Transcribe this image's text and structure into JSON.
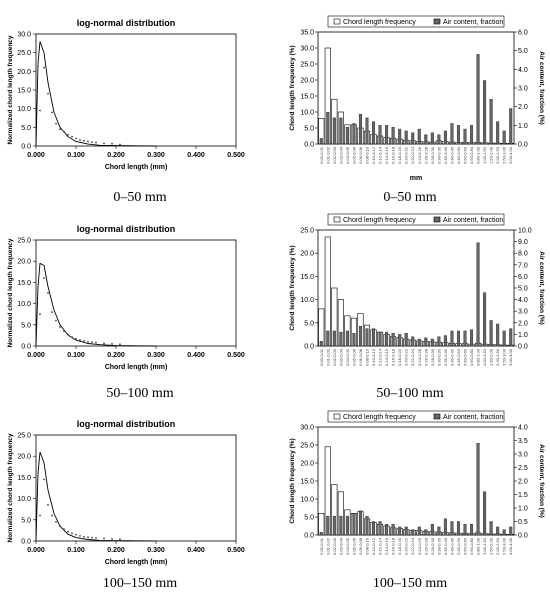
{
  "rows": [
    {
      "left": {
        "title": "log-normal distribution",
        "xlabel": "Chord length (mm)",
        "ylabel": "Normalized chord length frequency",
        "caption": "0–50 mm"
      },
      "right": {
        "xlabel": "mm",
        "ylabel_left": "Chord length frequency (%)",
        "ylabel_right": "Air content, fraction (%)",
        "legend": [
          "Chord length frequency",
          "Air content, fraction"
        ],
        "caption": "0–50 mm"
      }
    },
    {
      "left": {
        "title": "log-normal distribution",
        "xlabel": "Chord length (mm)",
        "ylabel": "Normalized chord length frequency",
        "caption": "50–100 mm"
      },
      "right": {
        "xlabel": "",
        "ylabel_left": "Chord length frequency (%)",
        "ylabel_right": "Air content, fraction (%)",
        "legend": [
          "Chord length frequency",
          "Air content, fraction"
        ],
        "caption": "50–100 mm"
      }
    },
    {
      "left": {
        "title": "log-normal distribution",
        "xlabel": "Chord length (mm)",
        "ylabel": "Normalized chord length frequency",
        "caption": "100–150 mm"
      },
      "right": {
        "xlabel": "",
        "ylabel_left": "Chord length frequency (%)",
        "ylabel_right": "Air content, fraction (%)",
        "legend": [
          "Chord length frequency",
          "Air content, fraction"
        ],
        "caption": "100–150 mm"
      }
    }
  ],
  "chart_data": [
    {
      "type": "line",
      "title": "log-normal distribution",
      "xlabel": "Chord length (mm)",
      "ylabel": "Normalized chord length frequency",
      "xlim": [
        0,
        0.5
      ],
      "ylim": [
        0,
        30
      ],
      "xticks": [
        "0.000",
        "0.100",
        "0.200",
        "0.300",
        "0.400",
        "0.500"
      ],
      "yticks": [
        "0.0",
        "5.0",
        "10.0",
        "15.0",
        "20.0",
        "25.0",
        "30.0"
      ],
      "series": [
        {
          "style": "fitted-curve",
          "x": [
            0,
            0.005,
            0.01,
            0.02,
            0.03,
            0.045,
            0.06,
            0.08,
            0.1,
            0.13,
            0.16,
            0.2,
            0.25,
            0.3
          ],
          "y": [
            0,
            22,
            28,
            25,
            17,
            9,
            5,
            2.5,
            1.2,
            0.5,
            0.2,
            0.1,
            0.05,
            0.02
          ]
        },
        {
          "style": "points",
          "x": [
            0.01,
            0.02,
            0.03,
            0.04,
            0.05,
            0.06,
            0.07,
            0.08,
            0.09,
            0.1,
            0.11,
            0.12,
            0.13,
            0.14,
            0.15,
            0.17,
            0.19,
            0.21
          ],
          "y": [
            9.5,
            21,
            14,
            9,
            6,
            4.5,
            3.8,
            3,
            2.5,
            2,
            1.6,
            1.4,
            1.2,
            1,
            0.9,
            0.7,
            0.6,
            0.4
          ]
        }
      ]
    },
    {
      "type": "bar",
      "xlabel": "mm",
      "ylabel": "Chord length frequency (%)",
      "y2label": "Air content, fraction (%)",
      "ylim": [
        0,
        35
      ],
      "y2lim": [
        0,
        6
      ],
      "yticks": [
        "0.0",
        "5.0",
        "10.0",
        "15.0",
        "20.0",
        "25.0",
        "30.0",
        "35.0"
      ],
      "y2ticks": [
        "0.0",
        "1.0",
        "2.0",
        "3.0",
        "4.0",
        "5.0",
        "6.0"
      ],
      "categories": [
        "0.00-0.01",
        "0.01-0.02",
        "0.02-0.03",
        "0.03-0.04",
        "0.04-0.05",
        "0.05-0.06",
        "0.06-0.08",
        "0.08-0.10",
        "0.10-0.12",
        "0.12-0.14",
        "0.14-0.16",
        "0.16-0.18",
        "0.18-0.20",
        "0.20-0.22",
        "0.22-0.24",
        "0.24-0.26",
        "0.26-0.28",
        "0.28-0.30",
        "0.30-0.35",
        "0.35-0.40",
        "0.40-0.45",
        "0.45-0.50",
        "0.50-0.60",
        "0.60-0.80",
        "0.80-1.00",
        "1.00-1.50",
        "1.50-2.00",
        "2.00-2.50",
        "2.50-3.00",
        "3.00-4.00"
      ],
      "series": [
        {
          "name": "Chord length frequency",
          "axis": "left",
          "values": [
            8,
            30,
            14,
            10,
            6,
            6,
            5,
            4,
            3,
            2.5,
            2,
            1.8,
            1.5,
            1.2,
            1,
            0.8,
            0.7,
            0.6,
            1,
            0.8,
            0.6,
            0.5,
            0.5,
            0.4,
            0.5,
            0.4,
            0.3,
            0.3,
            0.2,
            0.2
          ]
        },
        {
          "name": "Air content, fraction",
          "axis": "right",
          "values": [
            0.3,
            1.7,
            1.4,
            1.4,
            0.9,
            1.1,
            1.6,
            1.4,
            1.2,
            1.0,
            1.0,
            0.9,
            0.8,
            0.7,
            0.6,
            0.8,
            0.5,
            0.6,
            0.5,
            0.7,
            1.1,
            1.0,
            0.8,
            1.0,
            4.8,
            3.4,
            2.4,
            1.2,
            0.7,
            1.9
          ]
        }
      ]
    },
    {
      "type": "line",
      "title": "log-normal distribution",
      "xlabel": "Chord length (mm)",
      "ylabel": "Normalized chord length frequency",
      "xlim": [
        0,
        0.5
      ],
      "ylim": [
        0,
        25
      ],
      "xticks": [
        "0.000",
        "0.100",
        "0.200",
        "0.300",
        "0.400",
        "0.500"
      ],
      "yticks": [
        "0.0",
        "5.0",
        "10.0",
        "15.0",
        "20.0",
        "25.0"
      ],
      "series": [
        {
          "style": "fitted-curve",
          "x": [
            0,
            0.005,
            0.01,
            0.02,
            0.03,
            0.045,
            0.06,
            0.08,
            0.1,
            0.13,
            0.16,
            0.2,
            0.25,
            0.3
          ],
          "y": [
            0,
            14,
            19.5,
            19,
            14,
            8.5,
            5,
            2.6,
            1.4,
            0.6,
            0.3,
            0.1,
            0.05,
            0.02
          ]
        },
        {
          "style": "points",
          "x": [
            0.01,
            0.02,
            0.03,
            0.04,
            0.05,
            0.06,
            0.07,
            0.08,
            0.09,
            0.1,
            0.11,
            0.12,
            0.13,
            0.14,
            0.15,
            0.17,
            0.19,
            0.21
          ],
          "y": [
            7.5,
            16,
            12.5,
            8,
            6,
            4.5,
            3.5,
            2.7,
            2.1,
            1.7,
            1.4,
            1.2,
            1,
            0.9,
            0.8,
            0.6,
            0.5,
            0.4
          ]
        }
      ]
    },
    {
      "type": "bar",
      "xlabel": "",
      "ylabel": "Chord length frequency (%)",
      "y2label": "Air content, fraction (%)",
      "ylim": [
        0,
        25
      ],
      "y2lim": [
        0,
        10
      ],
      "yticks": [
        "0.0",
        "5.0",
        "10.0",
        "15.0",
        "20.0",
        "25.0"
      ],
      "y2ticks": [
        "0.0",
        "1.0",
        "2.0",
        "3.0",
        "4.0",
        "5.0",
        "6.0",
        "7.0",
        "8.0",
        "9.0",
        "10.0"
      ],
      "categories": [
        "0.00-0.01",
        "0.01-0.02",
        "0.02-0.03",
        "0.03-0.04",
        "0.04-0.05",
        "0.05-0.06",
        "0.06-0.08",
        "0.08-0.10",
        "0.10-0.12",
        "0.12-0.14",
        "0.14-0.16",
        "0.16-0.18",
        "0.18-0.20",
        "0.20-0.22",
        "0.22-0.24",
        "0.24-0.26",
        "0.26-0.28",
        "0.28-0.30",
        "0.30-0.35",
        "0.35-0.40",
        "0.40-0.45",
        "0.45-0.50",
        "0.50-0.60",
        "0.60-0.80",
        "0.80-1.00",
        "1.00-1.50",
        "1.50-2.00",
        "2.00-2.50",
        "2.50-3.00",
        "3.00-4.00"
      ],
      "series": [
        {
          "name": "Chord length frequency",
          "axis": "left",
          "values": [
            8,
            23.5,
            12.5,
            10,
            6.5,
            6,
            7,
            4.5,
            3.5,
            3,
            2.5,
            2,
            1.8,
            1.5,
            1.3,
            1.1,
            1,
            0.9,
            0.8,
            0.7,
            0.6,
            0.5,
            0.5,
            0.4,
            0.6,
            0.4,
            0.3,
            0.3,
            0.2,
            0.2
          ]
        },
        {
          "name": "Air content, fraction",
          "axis": "right",
          "values": [
            0.4,
            1.3,
            1.3,
            1.2,
            1.3,
            1.1,
            1.7,
            1.5,
            1.5,
            1.2,
            1.2,
            1.1,
            1.0,
            1.1,
            0.8,
            0.6,
            0.7,
            0.6,
            0.8,
            0.9,
            1.3,
            1.3,
            1.3,
            1.4,
            8.9,
            4.6,
            2.2,
            1.9,
            1.3,
            1.5
          ]
        }
      ]
    },
    {
      "type": "line",
      "title": "log-normal distribution",
      "xlabel": "Chord length (mm)",
      "ylabel": "Normalized chord length frequency",
      "xlim": [
        0,
        0.5
      ],
      "ylim": [
        0,
        25
      ],
      "xticks": [
        "0.000",
        "0.100",
        "0.200",
        "0.300",
        "0.400",
        "0.500"
      ],
      "yticks": [
        "0.0",
        "5.0",
        "10.0",
        "15.0",
        "20.0",
        "25.0"
      ],
      "series": [
        {
          "style": "fitted-curve",
          "x": [
            0,
            0.005,
            0.01,
            0.02,
            0.03,
            0.045,
            0.06,
            0.08,
            0.1,
            0.13,
            0.16,
            0.2,
            0.25,
            0.3
          ],
          "y": [
            0,
            16,
            21,
            18.5,
            12,
            6.5,
            3.5,
            1.6,
            0.8,
            0.35,
            0.15,
            0.08,
            0.04,
            0.02
          ]
        },
        {
          "style": "points",
          "x": [
            0.01,
            0.02,
            0.03,
            0.04,
            0.05,
            0.06,
            0.07,
            0.08,
            0.09,
            0.1,
            0.11,
            0.12,
            0.13,
            0.14,
            0.15,
            0.17,
            0.19,
            0.21
          ],
          "y": [
            6,
            14.5,
            8.5,
            6,
            4.5,
            3.5,
            2.8,
            2.2,
            1.8,
            1.5,
            1.2,
            1,
            0.9,
            0.8,
            0.7,
            0.6,
            0.5,
            0.4
          ]
        }
      ]
    },
    {
      "type": "bar",
      "xlabel": "",
      "ylabel": "Chord length frequency (%)",
      "y2label": "Air content, fraction (%)",
      "ylim": [
        0,
        30
      ],
      "y2lim": [
        0,
        4
      ],
      "yticks": [
        "0.0",
        "5.0",
        "10.0",
        "15.0",
        "20.0",
        "25.0",
        "30.0"
      ],
      "y2ticks": [
        "0.0",
        "0.5",
        "1.0",
        "1.5",
        "2.0",
        "2.5",
        "3.0",
        "3.5",
        "4.0"
      ],
      "categories": [
        "0.00-0.01",
        "0.01-0.02",
        "0.02-0.03",
        "0.03-0.04",
        "0.04-0.05",
        "0.05-0.06",
        "0.06-0.08",
        "0.08-0.10",
        "0.10-0.12",
        "0.12-0.14",
        "0.14-0.16",
        "0.16-0.18",
        "0.18-0.20",
        "0.20-0.22",
        "0.22-0.24",
        "0.24-0.26",
        "0.26-0.28",
        "0.28-0.30",
        "0.30-0.35",
        "0.35-0.40",
        "0.40-0.45",
        "0.45-0.50",
        "0.50-0.60",
        "0.60-0.80",
        "0.80-1.00",
        "1.00-1.50",
        "1.50-2.00",
        "2.00-2.50",
        "2.50-3.00",
        "3.00-4.00"
      ],
      "series": [
        {
          "name": "Chord length frequency",
          "axis": "left",
          "values": [
            6,
            24.5,
            14,
            12,
            7,
            6,
            6.5,
            4.5,
            3.5,
            3,
            2.5,
            2,
            1.8,
            1.5,
            1.3,
            1.2,
            1,
            0.9,
            0.8,
            0.7,
            0.6,
            0.5,
            0.5,
            0.4,
            0.6,
            0.4,
            0.3,
            0.3,
            0.2,
            0.2
          ]
        },
        {
          "name": "Air content, fraction",
          "axis": "right",
          "values": [
            0.1,
            0.7,
            0.7,
            0.7,
            0.7,
            0.8,
            0.9,
            0.7,
            0.5,
            0.5,
            0.4,
            0.4,
            0.3,
            0.3,
            0.2,
            0.3,
            0.2,
            0.4,
            0.3,
            0.6,
            0.5,
            0.5,
            0.4,
            0.4,
            3.4,
            1.6,
            0.5,
            0.3,
            0.2,
            0.3
          ]
        }
      ]
    }
  ]
}
